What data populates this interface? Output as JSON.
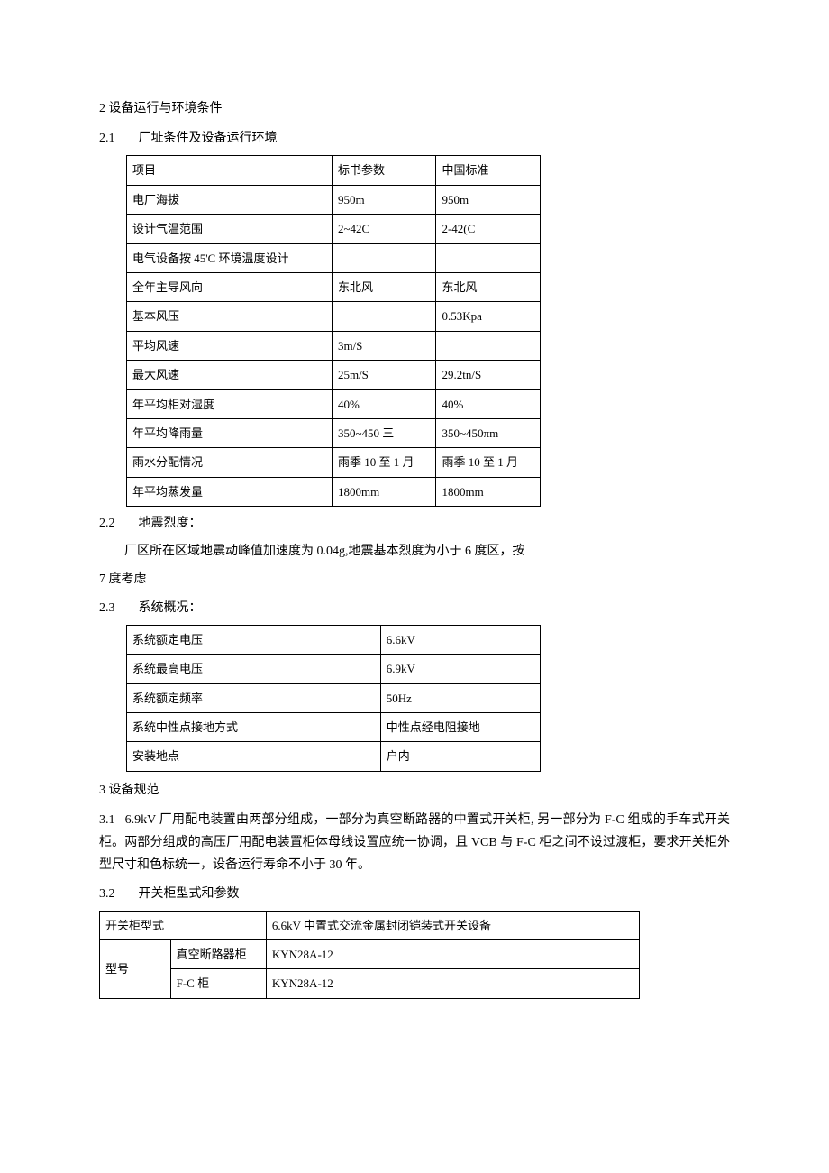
{
  "section2": {
    "title": "2 设备运行与环境条件",
    "s21": {
      "num": "2.1",
      "title": "厂址条件及设备运行环境",
      "table": {
        "rows": [
          [
            "项目",
            "标书参数",
            "中国标准"
          ],
          [
            "电厂海拔",
            "950m",
            "950m"
          ],
          [
            "设计气温范围",
            "2~42C",
            "2-42(C"
          ],
          [
            "电气设备按 45'C 环境温度设计",
            "",
            ""
          ],
          [
            "全年主导风向",
            "东北风",
            "东北风"
          ],
          [
            "基本风压",
            "",
            "0.53Kpa"
          ],
          [
            "平均风速",
            "3m/S",
            ""
          ],
          [
            "最大风速",
            "25m/S",
            "29.2tn/S"
          ],
          [
            "年平均相对湿度",
            "40%",
            "40%"
          ],
          [
            "年平均降雨量",
            "350~450 三",
            "350~450πm"
          ],
          [
            "雨水分配情况",
            "雨季 10 至 1 月",
            "雨季 10 至 1 月"
          ],
          [
            "年平均蒸发量",
            "1800mm",
            "1800mm"
          ]
        ]
      }
    },
    "s22": {
      "num": "2.2",
      "title": "地震烈度：",
      "body1": "厂区所在区域地震动峰值加速度为 0.04g,地震基本烈度为小于 6 度区，按",
      "body2": "7 度考虑"
    },
    "s23": {
      "num": "2.3",
      "title": "系统概况：",
      "table": {
        "rows": [
          [
            "系统额定电压",
            "6.6kV"
          ],
          [
            "系统最高电压",
            "6.9kV"
          ],
          [
            "系统额定频率",
            "50Hz"
          ],
          [
            "系统中性点接地方式",
            "中性点经电阻接地"
          ],
          [
            "安装地点",
            "户内"
          ]
        ]
      }
    }
  },
  "section3": {
    "title": "3 设备规范",
    "s31": {
      "num": "3.1",
      "body": "6.9kV 厂用配电装置由两部分组成，一部分为真空断路器的中置式开关柜, 另一部分为 F-C 组成的手车式开关柜。两部分组成的高压厂用配电装置柜体母线设置应统一协调，且 VCB 与 F-C 柜之间不设过渡柜，要求开关柜外型尺寸和色标统一，设备运行寿命不小于 30 年。"
    },
    "s32": {
      "num": "3.2",
      "title": "开关柜型式和参数",
      "table": {
        "row1": {
          "c1": "开关柜型式",
          "c2": "6.6kV 中置式交流金属封闭铠装式开关设备"
        },
        "row2": {
          "c1": "型号",
          "c2": "真空断路器柜",
          "c3": "KYN28A-12"
        },
        "row3": {
          "c2": "F-C 柜",
          "c3": "KYN28A-12"
        }
      }
    }
  }
}
